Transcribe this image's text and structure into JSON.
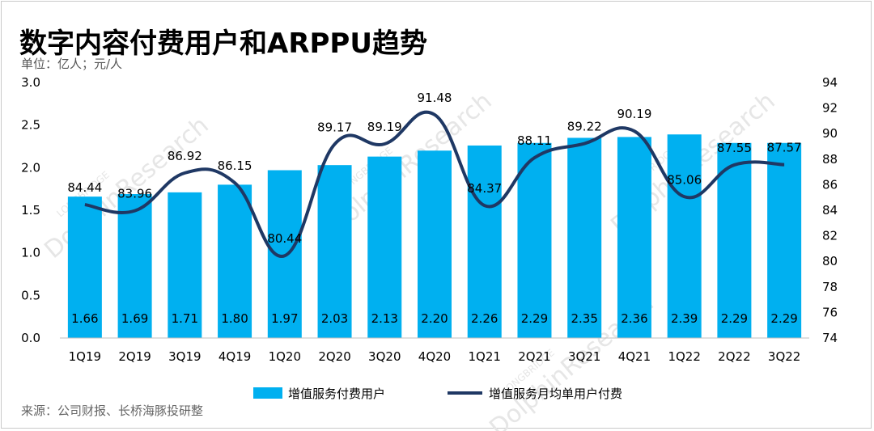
{
  "title": "数字内容付费用户和ARPPU趋势",
  "unit_text": "单位：亿人；元/人",
  "source_text": "来源：公司财报、长桥海豚投研整",
  "watermark": {
    "brand": "DolphinResearch",
    "sub": "LONGBRIDGE"
  },
  "chart_data": {
    "type": "bar",
    "categories": [
      "1Q19",
      "2Q19",
      "3Q19",
      "4Q19",
      "1Q20",
      "2Q20",
      "3Q20",
      "4Q20",
      "1Q21",
      "2Q21",
      "3Q21",
      "4Q21",
      "1Q22",
      "2Q22",
      "3Q22"
    ],
    "series": [
      {
        "name": "增值服务付费用户",
        "type": "bar",
        "axis": "left",
        "color": "#00b0f0",
        "values": [
          1.66,
          1.69,
          1.71,
          1.8,
          1.97,
          2.03,
          2.13,
          2.2,
          2.26,
          2.29,
          2.35,
          2.36,
          2.39,
          2.29,
          2.29
        ],
        "labels": [
          "1.66",
          "1.69",
          "1.71",
          "1.80",
          "1.97",
          "2.03",
          "2.13",
          "2.20",
          "2.26",
          "2.29",
          "2.35",
          "2.36",
          "2.39",
          "2.29",
          "2.29"
        ]
      },
      {
        "name": "增值服务月均单用户付费",
        "type": "line",
        "axis": "right",
        "color": "#1f3864",
        "values": [
          84.44,
          83.96,
          86.92,
          86.15,
          80.44,
          89.17,
          89.19,
          91.48,
          84.37,
          88.11,
          89.22,
          90.19,
          85.06,
          87.55,
          87.57
        ],
        "labels": [
          "84.44",
          "83.96",
          "86.92",
          "86.15",
          "80.44",
          "89.17",
          "89.19",
          "91.48",
          "84.37",
          "88.11",
          "89.22",
          "90.19",
          "85.06",
          "87.55",
          "87.57"
        ]
      }
    ],
    "y_left": {
      "min": 0,
      "max": 3,
      "ticks": [
        "0.0",
        "0.5",
        "1.0",
        "1.5",
        "2.0",
        "2.5",
        "3.0"
      ]
    },
    "y_right": {
      "min": 74,
      "max": 94,
      "ticks": [
        "74",
        "76",
        "78",
        "80",
        "82",
        "84",
        "86",
        "88",
        "90",
        "92",
        "94"
      ]
    },
    "grid": false,
    "legend_position": "bottom"
  }
}
